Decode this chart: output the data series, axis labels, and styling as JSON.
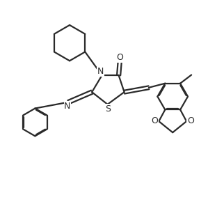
{
  "bg_color": "#ffffff",
  "line_color": "#2a2a2a",
  "line_width": 1.6,
  "figsize": [
    3.22,
    2.9
  ],
  "dpi": 100,
  "xlim": [
    0,
    10
  ],
  "ylim": [
    0,
    9
  ]
}
